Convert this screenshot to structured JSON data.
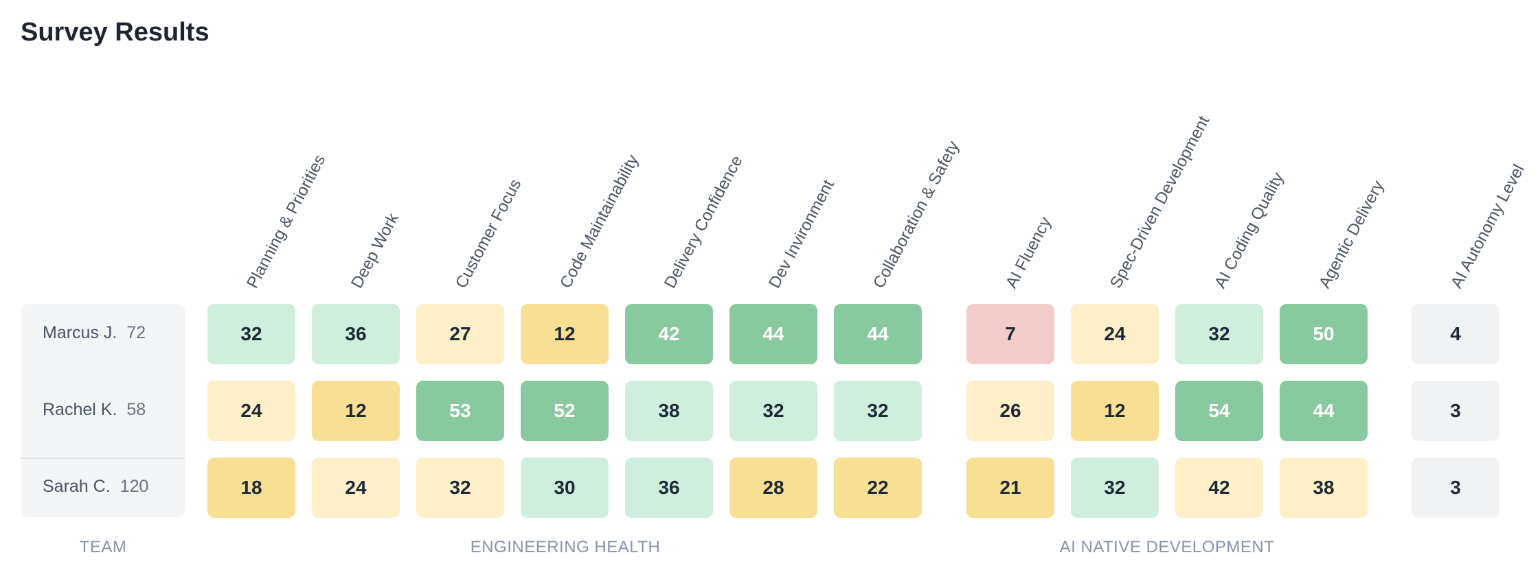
{
  "page": {
    "title": "Survey Results"
  },
  "colors": {
    "light_green": "#cfeedd",
    "dark_green": "#89c9a0",
    "light_yellow": "#fdefc8",
    "dark_yellow": "#f8df93",
    "red": "#f4cccc",
    "gray": "#f1f2f4"
  },
  "columns": [
    "Planning & Priorities",
    "Deep Work",
    "Customer Focus",
    "Code Maintainability",
    "Delivery Confidence",
    "Dev Invironment",
    "Collaboration & Safety",
    "AI Fluency",
    "Spec-Driven Development",
    "AI Coding Quality",
    "Agentic Delivery",
    "AI Autonomy Level"
  ],
  "groups": {
    "team": "TEAM",
    "engineering_health": "ENGINEERING HEALTH",
    "ai_native": "AI NATIVE DEVELOPMENT"
  },
  "team": [
    {
      "name": "Marcus J.",
      "score": "72",
      "values": [
        "32",
        "36",
        "27",
        "12",
        "42",
        "44",
        "44",
        "7",
        "24",
        "32",
        "50",
        "4"
      ],
      "tones": [
        "light_green",
        "light_green",
        "light_yellow",
        "dark_yellow",
        "dark_green",
        "dark_green",
        "dark_green",
        "red",
        "light_yellow",
        "light_green",
        "dark_green",
        "gray"
      ]
    },
    {
      "name": "Rachel K.",
      "score": "58",
      "values": [
        "24",
        "12",
        "53",
        "52",
        "38",
        "32",
        "32",
        "26",
        "12",
        "54",
        "44",
        "3"
      ],
      "tones": [
        "light_yellow",
        "dark_yellow",
        "dark_green",
        "dark_green",
        "light_green",
        "light_green",
        "light_green",
        "light_yellow",
        "dark_yellow",
        "dark_green",
        "dark_green",
        "gray"
      ]
    },
    {
      "name": "Sarah C.",
      "score": "120",
      "values": [
        "18",
        "24",
        "32",
        "30",
        "36",
        "28",
        "22",
        "21",
        "32",
        "42",
        "38",
        "3"
      ],
      "tones": [
        "dark_yellow",
        "light_yellow",
        "light_yellow",
        "light_green",
        "light_green",
        "dark_yellow",
        "dark_yellow",
        "dark_yellow",
        "light_green",
        "light_yellow",
        "light_yellow",
        "gray"
      ]
    }
  ]
}
